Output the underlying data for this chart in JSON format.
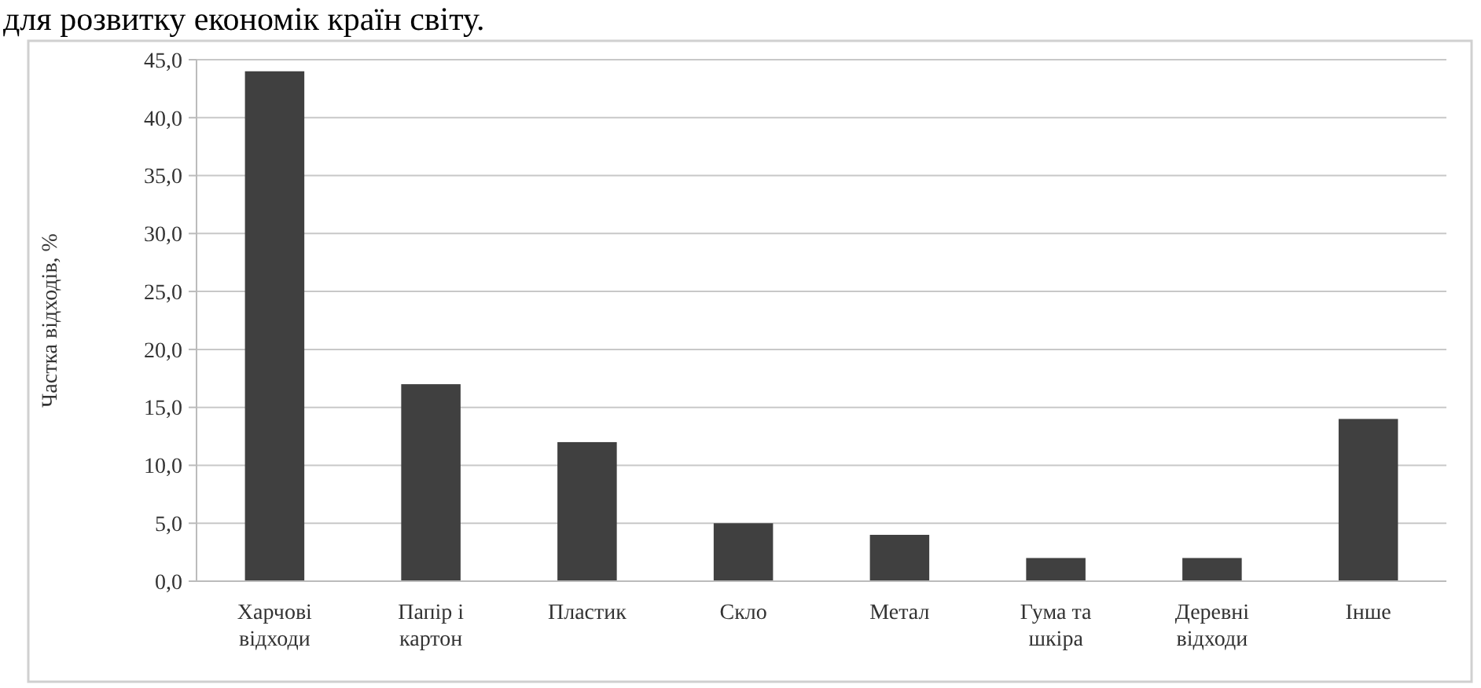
{
  "chart_data": {
    "type": "bar",
    "ylabel": "Частка відходів, %",
    "annotations": [
      "для розвитку економік країн світу."
    ],
    "categories": [
      "Харчові\nвідходи",
      "Папір і\nкартон",
      "Пластик",
      "Скло",
      "Метал",
      "Гума та\nшкіра",
      "Деревні\nвідходи",
      "Інше"
    ],
    "values": [
      44,
      17,
      12,
      5,
      4,
      2,
      2,
      14
    ],
    "color": "#404040",
    "ylim": [
      0,
      45
    ],
    "yticks": [
      {
        "value": 0,
        "label": "0,0"
      },
      {
        "value": 5,
        "label": "5,0"
      },
      {
        "value": 10,
        "label": "10,0"
      },
      {
        "value": 15,
        "label": "15,0"
      },
      {
        "value": 20,
        "label": "20,0"
      },
      {
        "value": 25,
        "label": "25,0"
      },
      {
        "value": 30,
        "label": "30,0"
      },
      {
        "value": 35,
        "label": "35,0"
      },
      {
        "value": 40,
        "label": "40,0"
      },
      {
        "value": 45,
        "label": "45,0"
      }
    ],
    "grid": true
  }
}
